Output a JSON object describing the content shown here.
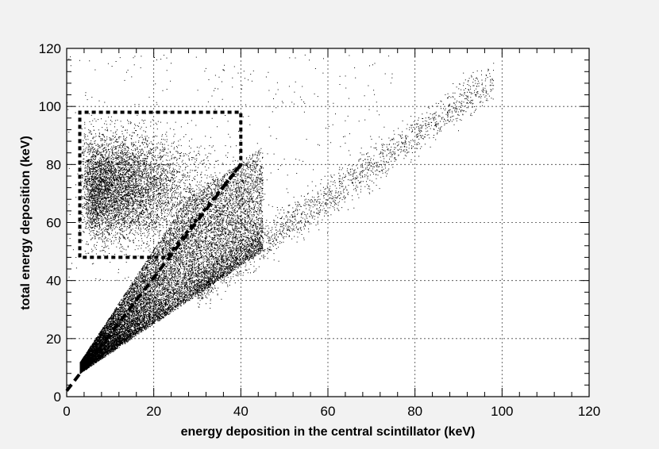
{
  "chart_data": {
    "type": "scatter",
    "title": "",
    "xlabel": "energy deposition in the central scintillator (keV)",
    "ylabel": "total energy deposition (keV)",
    "xlim": [
      0,
      120
    ],
    "ylim": [
      0,
      120
    ],
    "x_ticks": [
      0,
      20,
      40,
      60,
      80,
      100,
      120
    ],
    "y_ticks": [
      0,
      20,
      40,
      60,
      80,
      100,
      120
    ],
    "grid": true,
    "legend": "none",
    "marker_color": "#000000",
    "distributions": [
      {
        "region": "dense low-energy wedge",
        "x_range": [
          3,
          45
        ],
        "y_range": [
          8,
          48
        ],
        "description_points": [
          [
            3,
            8
          ],
          [
            5,
            12
          ],
          [
            10,
            18
          ],
          [
            20,
            28
          ],
          [
            30,
            36
          ],
          [
            40,
            44
          ]
        ]
      },
      {
        "region": "cluster inside selection box",
        "x_range": [
          3,
          40
        ],
        "y_range": [
          48,
          98
        ],
        "center": [
          13,
          72
        ]
      },
      {
        "region": "diagonal band",
        "x_range": [
          30,
          100
        ],
        "y_range": [
          35,
          110
        ],
        "slope_approx": 1.05
      }
    ],
    "selection_region": {
      "style": "dashed",
      "vertices": [
        [
          3,
          48
        ],
        [
          3,
          98
        ],
        [
          40,
          98
        ],
        [
          40,
          80
        ],
        [
          23,
          48
        ]
      ]
    },
    "diagonal_cut": {
      "style": "dashed",
      "from": [
        0,
        2
      ],
      "to": [
        40,
        80
      ]
    }
  }
}
